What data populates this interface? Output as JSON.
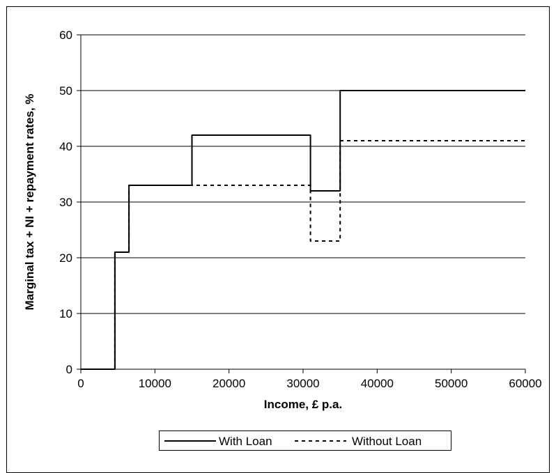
{
  "chart_data": {
    "type": "line",
    "title": "",
    "xlabel": "Income, £ p.a.",
    "ylabel": "Marginal tax + NI + repayment rates, %",
    "xlim": [
      0,
      60000
    ],
    "ylim": [
      0,
      60
    ],
    "xticks": [
      0,
      10000,
      20000,
      30000,
      40000,
      50000,
      60000
    ],
    "yticks": [
      0,
      10,
      20,
      30,
      40,
      50,
      60
    ],
    "grid": "horizontal",
    "legend_position": "bottom",
    "series": [
      {
        "name": "With Loan",
        "style": "solid",
        "color": "#000000",
        "points": [
          [
            0,
            0
          ],
          [
            4600,
            0
          ],
          [
            4600,
            21
          ],
          [
            6500,
            21
          ],
          [
            6500,
            33
          ],
          [
            15000,
            33
          ],
          [
            15000,
            42
          ],
          [
            31000,
            42
          ],
          [
            31000,
            32
          ],
          [
            35000,
            32
          ],
          [
            35000,
            50
          ],
          [
            60000,
            50
          ]
        ]
      },
      {
        "name": "Without Loan",
        "style": "dashed",
        "color": "#000000",
        "points": [
          [
            0,
            0
          ],
          [
            4600,
            0
          ],
          [
            4600,
            21
          ],
          [
            6500,
            21
          ],
          [
            6500,
            33
          ],
          [
            31000,
            33
          ],
          [
            31000,
            23
          ],
          [
            35000,
            23
          ],
          [
            35000,
            41
          ],
          [
            60000,
            41
          ]
        ]
      }
    ]
  }
}
